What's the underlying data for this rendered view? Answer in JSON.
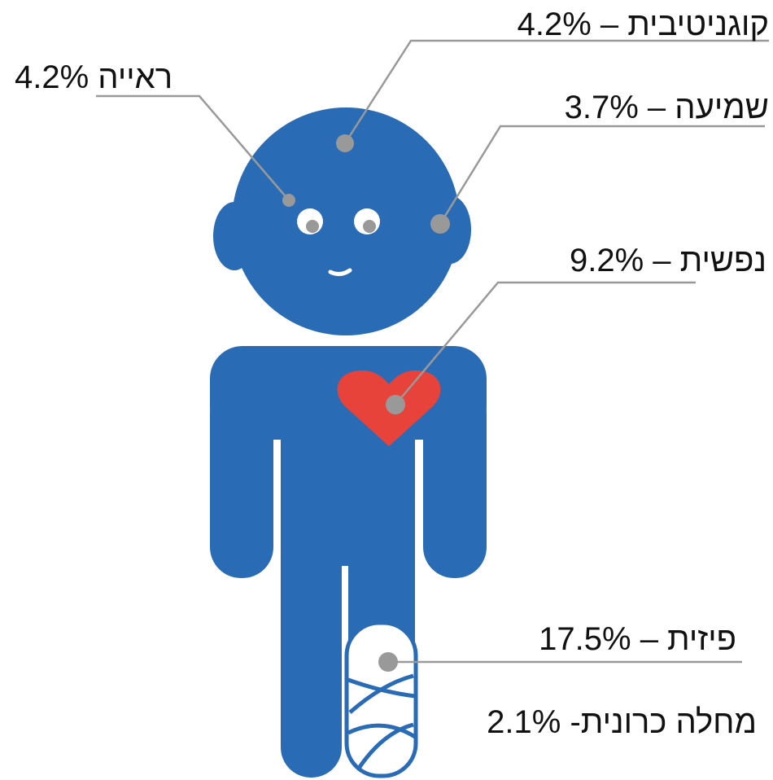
{
  "labels": {
    "cognitive": "קוגניטיבית – 4.2%",
    "vision": "ראייה 4.2%",
    "hearing": "שמיעה – 3.7%",
    "mental": "נפשית – 9.2%",
    "physical": "פיזית – 17.5%",
    "chronic": "מחלה כרונית- 2.1%"
  }
}
